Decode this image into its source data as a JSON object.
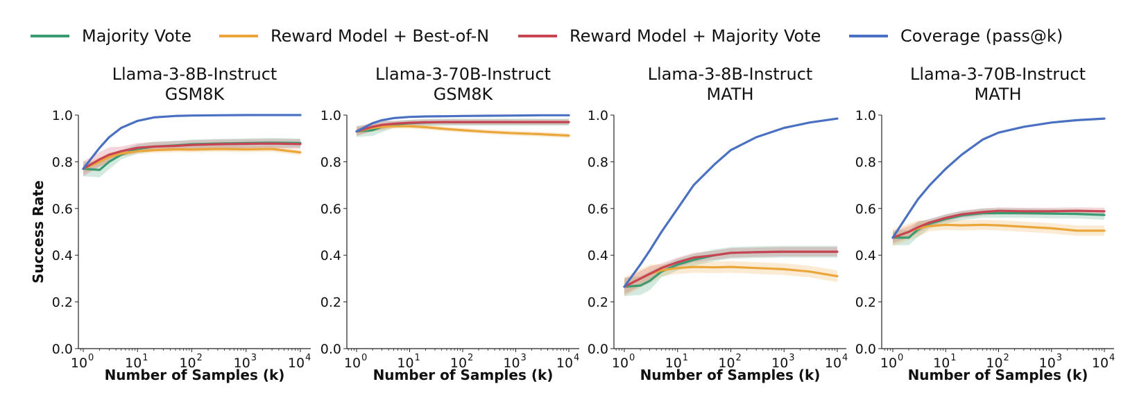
{
  "legend": {
    "items": [
      {
        "label": "Majority Vote",
        "color": "#3a9a72"
      },
      {
        "label": "Reward Model + Best-of-N",
        "color": "#eba63a"
      },
      {
        "label": "Reward Model + Majority Vote",
        "color": "#c94452"
      },
      {
        "label": "Coverage (pass@k)",
        "color": "#4a70c2"
      }
    ]
  },
  "chart_data": [
    {
      "type": "line",
      "title": "Llama-3-8B-Instruct\nGSM8K",
      "title_lines": [
        "Llama-3-8B-Instruct",
        "GSM8K"
      ],
      "xlabel": "Number of Samples (k)",
      "ylabel": "Success Rate",
      "xscale": "log",
      "xlim": [
        1,
        10000
      ],
      "ylim": [
        0,
        1
      ],
      "xticks": [
        "10^0",
        "10^1",
        "10^2",
        "10^3",
        "10^4"
      ],
      "yticks": [
        "0.0",
        "0.2",
        "0.4",
        "0.6",
        "0.8",
        "1.0"
      ],
      "x": [
        1,
        2,
        3,
        5,
        10,
        20,
        50,
        100,
        300,
        1000,
        3000,
        10000
      ],
      "series": [
        {
          "name": "Majority Vote",
          "values": [
            0.77,
            0.765,
            0.8,
            0.83,
            0.855,
            0.865,
            0.87,
            0.875,
            0.878,
            0.88,
            0.882,
            0.88
          ],
          "band": 0.02
        },
        {
          "name": "Reward Model + Best-of-N",
          "values": [
            0.77,
            0.8,
            0.82,
            0.835,
            0.845,
            0.85,
            0.853,
            0.852,
            0.855,
            0.853,
            0.855,
            0.84
          ],
          "band": 0.012
        },
        {
          "name": "Reward Model + Majority Vote",
          "values": [
            0.77,
            0.81,
            0.83,
            0.845,
            0.86,
            0.865,
            0.868,
            0.872,
            0.875,
            0.877,
            0.878,
            0.876
          ],
          "band": 0.02
        },
        {
          "name": "Coverage (pass@k)",
          "values": [
            0.77,
            0.86,
            0.905,
            0.945,
            0.975,
            0.99,
            0.996,
            0.998,
            0.999,
            1.0,
            1.0,
            1.0
          ],
          "band": 0
        }
      ]
    },
    {
      "type": "line",
      "title": "Llama-3-70B-Instruct\nGSM8K",
      "title_lines": [
        "Llama-3-70B-Instruct",
        "GSM8K"
      ],
      "xlabel": "Number of Samples (k)",
      "ylabel": "",
      "xscale": "log",
      "xlim": [
        1,
        10000
      ],
      "ylim": [
        0,
        1
      ],
      "xticks": [
        "10^0",
        "10^1",
        "10^2",
        "10^3",
        "10^4"
      ],
      "yticks": [
        "0.0",
        "0.2",
        "0.4",
        "0.6",
        "0.8",
        "1.0"
      ],
      "x": [
        1,
        2,
        3,
        5,
        10,
        20,
        50,
        100,
        300,
        1000,
        3000,
        10000
      ],
      "series": [
        {
          "name": "Majority Vote",
          "values": [
            0.93,
            0.935,
            0.95,
            0.96,
            0.965,
            0.968,
            0.97,
            0.97,
            0.97,
            0.97,
            0.97,
            0.97
          ],
          "band": 0.015
        },
        {
          "name": "Reward Model + Best-of-N",
          "values": [
            0.93,
            0.945,
            0.95,
            0.952,
            0.952,
            0.948,
            0.94,
            0.935,
            0.928,
            0.922,
            0.918,
            0.912
          ],
          "band": 0.01
        },
        {
          "name": "Reward Model + Majority Vote",
          "values": [
            0.93,
            0.95,
            0.958,
            0.963,
            0.967,
            0.969,
            0.97,
            0.97,
            0.97,
            0.97,
            0.97,
            0.97
          ],
          "band": 0.012
        },
        {
          "name": "Coverage (pass@k)",
          "values": [
            0.93,
            0.965,
            0.978,
            0.987,
            0.992,
            0.994,
            0.995,
            0.996,
            0.997,
            0.998,
            0.999,
            0.999
          ],
          "band": 0
        }
      ]
    },
    {
      "type": "line",
      "title": "Llama-3-8B-Instruct\nMATH",
      "title_lines": [
        "Llama-3-8B-Instruct",
        "MATH"
      ],
      "xlabel": "Number of Samples (k)",
      "ylabel": "",
      "xscale": "log",
      "xlim": [
        1,
        10000
      ],
      "ylim": [
        0,
        1
      ],
      "xticks": [
        "10^0",
        "10^1",
        "10^2",
        "10^3",
        "10^4"
      ],
      "yticks": [
        "0.0",
        "0.2",
        "0.4",
        "0.6",
        "0.8",
        "1.0"
      ],
      "x": [
        1,
        2,
        3,
        5,
        10,
        20,
        50,
        100,
        300,
        1000,
        3000,
        10000
      ],
      "series": [
        {
          "name": "Majority Vote",
          "values": [
            0.265,
            0.27,
            0.29,
            0.33,
            0.36,
            0.38,
            0.4,
            0.41,
            0.413,
            0.415,
            0.415,
            0.415
          ],
          "band": 0.025
        },
        {
          "name": "Reward Model + Best-of-N",
          "values": [
            0.265,
            0.3,
            0.32,
            0.335,
            0.345,
            0.35,
            0.348,
            0.35,
            0.345,
            0.34,
            0.33,
            0.31
          ],
          "band": 0.025
        },
        {
          "name": "Reward Model + Majority Vote",
          "values": [
            0.265,
            0.3,
            0.32,
            0.345,
            0.37,
            0.39,
            0.4,
            0.41,
            0.413,
            0.415,
            0.415,
            0.415
          ],
          "band": 0.02
        },
        {
          "name": "Coverage (pass@k)",
          "values": [
            0.265,
            0.36,
            0.42,
            0.5,
            0.6,
            0.7,
            0.79,
            0.85,
            0.905,
            0.945,
            0.968,
            0.985
          ],
          "band": 0
        }
      ]
    },
    {
      "type": "line",
      "title": "Llama-3-70B-Instruct\nMATH",
      "title_lines": [
        "Llama-3-70B-Instruct",
        "MATH"
      ],
      "xlabel": "Number of Samples (k)",
      "ylabel": "",
      "xscale": "log",
      "xlim": [
        1,
        10000
      ],
      "ylim": [
        0,
        1
      ],
      "xticks": [
        "10^0",
        "10^1",
        "10^2",
        "10^3",
        "10^4"
      ],
      "yticks": [
        "0.0",
        "0.2",
        "0.4",
        "0.6",
        "0.8",
        "1.0"
      ],
      "x": [
        1,
        2,
        3,
        5,
        10,
        20,
        50,
        100,
        300,
        1000,
        3000,
        10000
      ],
      "series": [
        {
          "name": "Majority Vote",
          "values": [
            0.475,
            0.475,
            0.51,
            0.535,
            0.555,
            0.57,
            0.58,
            0.58,
            0.58,
            0.578,
            0.577,
            0.572
          ],
          "band": 0.02
        },
        {
          "name": "Reward Model + Best-of-N",
          "values": [
            0.475,
            0.5,
            0.515,
            0.525,
            0.53,
            0.528,
            0.53,
            0.528,
            0.522,
            0.515,
            0.505,
            0.505
          ],
          "band": 0.022
        },
        {
          "name": "Reward Model + Majority Vote",
          "values": [
            0.475,
            0.5,
            0.52,
            0.54,
            0.56,
            0.575,
            0.585,
            0.59,
            0.588,
            0.588,
            0.59,
            0.588
          ],
          "band": 0.015
        },
        {
          "name": "Coverage (pass@k)",
          "values": [
            0.475,
            0.58,
            0.64,
            0.7,
            0.77,
            0.83,
            0.895,
            0.925,
            0.95,
            0.968,
            0.978,
            0.985
          ],
          "band": 0
        }
      ]
    }
  ]
}
